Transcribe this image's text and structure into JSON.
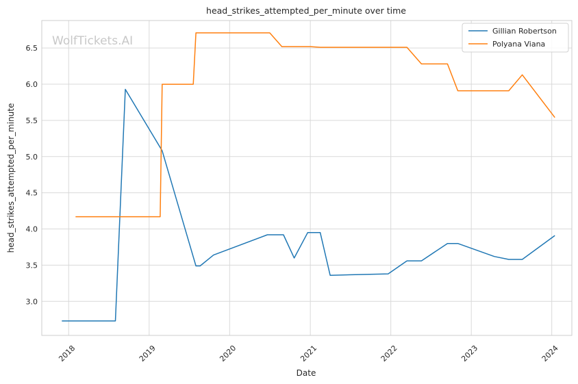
{
  "chart_data": {
    "type": "line",
    "title": "head_strikes_attempted_per_minute over time",
    "xlabel": "Date",
    "ylabel": "head_strikes_attempted_per_minute",
    "watermark": "WolfTickets.AI",
    "x_tick_labels": [
      "2018",
      "2019",
      "2020",
      "2021",
      "2022",
      "2023",
      "2024"
    ],
    "y_tick_labels": [
      "3.0",
      "3.5",
      "4.0",
      "4.5",
      "5.0",
      "5.5",
      "6.0",
      "6.5"
    ],
    "x_range": [
      "2017-09-01",
      "2024-04-01"
    ],
    "ylim": [
      2.53,
      6.88
    ],
    "grid": true,
    "legend_position": "top-right",
    "series": [
      {
        "name": "Gillian Robertson",
        "color": "#1f77b4",
        "points": [
          {
            "x": "2017-12-01",
            "y": 2.73
          },
          {
            "x": "2018-08-01",
            "y": 2.73
          },
          {
            "x": "2018-09-15",
            "y": 5.93
          },
          {
            "x": "2019-03-01",
            "y": 5.08
          },
          {
            "x": "2019-08-01",
            "y": 3.49
          },
          {
            "x": "2019-08-20",
            "y": 3.49
          },
          {
            "x": "2019-10-20",
            "y": 3.64
          },
          {
            "x": "2020-06-20",
            "y": 3.92
          },
          {
            "x": "2020-09-01",
            "y": 3.92
          },
          {
            "x": "2020-10-20",
            "y": 3.6
          },
          {
            "x": "2020-12-20",
            "y": 3.95
          },
          {
            "x": "2021-02-15",
            "y": 3.95
          },
          {
            "x": "2021-04-01",
            "y": 3.36
          },
          {
            "x": "2021-12-20",
            "y": 3.38
          },
          {
            "x": "2022-03-15",
            "y": 3.56
          },
          {
            "x": "2022-05-20",
            "y": 3.56
          },
          {
            "x": "2022-09-15",
            "y": 3.8
          },
          {
            "x": "2022-11-01",
            "y": 3.8
          },
          {
            "x": "2023-04-15",
            "y": 3.62
          },
          {
            "x": "2023-06-20",
            "y": 3.58
          },
          {
            "x": "2023-08-20",
            "y": 3.58
          },
          {
            "x": "2024-01-15",
            "y": 3.91
          }
        ]
      },
      {
        "name": "Polyana Viana",
        "color": "#ff7f0e",
        "points": [
          {
            "x": "2018-02-01",
            "y": 4.17
          },
          {
            "x": "2019-02-20",
            "y": 4.17
          },
          {
            "x": "2019-03-01",
            "y": 6.0
          },
          {
            "x": "2019-07-20",
            "y": 6.0
          },
          {
            "x": "2019-08-01",
            "y": 6.71
          },
          {
            "x": "2020-07-01",
            "y": 6.71
          },
          {
            "x": "2020-08-25",
            "y": 6.52
          },
          {
            "x": "2021-01-01",
            "y": 6.52
          },
          {
            "x": "2021-02-15",
            "y": 6.51
          },
          {
            "x": "2022-03-15",
            "y": 6.51
          },
          {
            "x": "2022-05-20",
            "y": 6.28
          },
          {
            "x": "2022-09-15",
            "y": 6.28
          },
          {
            "x": "2022-11-01",
            "y": 5.91
          },
          {
            "x": "2023-06-20",
            "y": 5.91
          },
          {
            "x": "2023-08-20",
            "y": 6.13
          },
          {
            "x": "2024-01-15",
            "y": 5.54
          }
        ]
      }
    ]
  }
}
